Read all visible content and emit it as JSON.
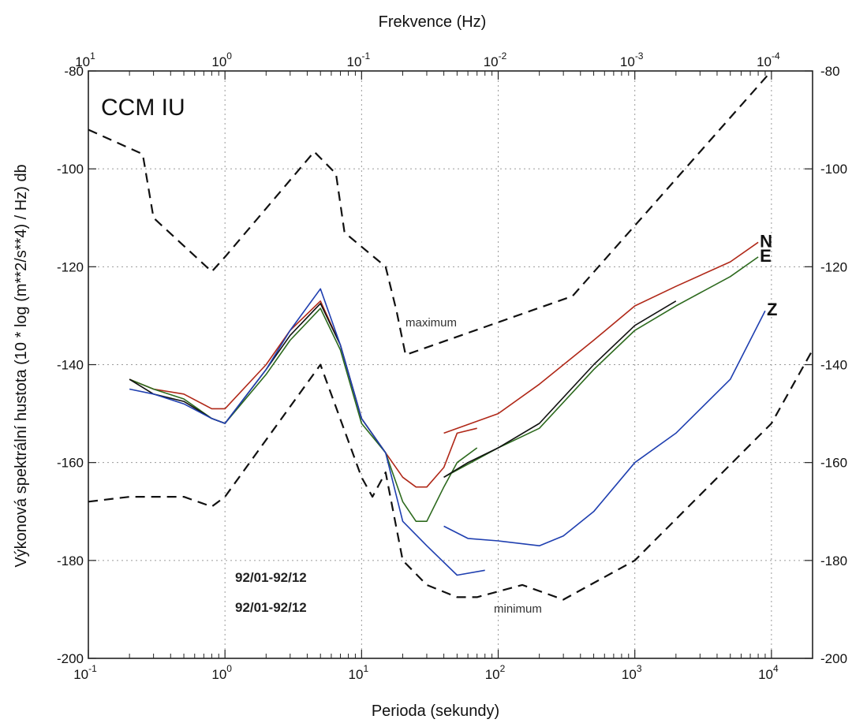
{
  "chart_data": {
    "type": "line",
    "x_scale": "log",
    "xlabel": "Perioda (sekundy)",
    "x2label": "Frekvence (Hz)",
    "ylabel": "Výkonová spektrální hustota  (10 * log (m**2/s**4) / Hz) db",
    "xlim": [
      0.1,
      20000
    ],
    "ylim": [
      -200,
      -80
    ],
    "grid": true,
    "x_ticks": [
      {
        "value": 0.1,
        "base": "10",
        "exp": "-1"
      },
      {
        "value": 1,
        "base": "10",
        "exp": "0"
      },
      {
        "value": 10,
        "base": "10",
        "exp": "1"
      },
      {
        "value": 100,
        "base": "10",
        "exp": "2"
      },
      {
        "value": 1000,
        "base": "10",
        "exp": "3"
      },
      {
        "value": 10000,
        "base": "10",
        "exp": "4"
      }
    ],
    "x2_ticks": [
      {
        "period": 0.1,
        "base": "10",
        "exp": "1"
      },
      {
        "period": 1,
        "base": "10",
        "exp": "0"
      },
      {
        "period": 10,
        "base": "10",
        "exp": "-1"
      },
      {
        "period": 100,
        "base": "10",
        "exp": "-2"
      },
      {
        "period": 1000,
        "base": "10",
        "exp": "-3"
      },
      {
        "period": 10000,
        "base": "10",
        "exp": "-4"
      }
    ],
    "y_ticks": [
      -80,
      -100,
      -120,
      -140,
      -160,
      -180,
      -200
    ],
    "y_ticks_right": [
      -80,
      -100,
      -120,
      -140,
      -160,
      -180,
      -200
    ],
    "annotations": {
      "station": "CCM  IU",
      "date1": "92/01-92/12",
      "date2": "92/01-92/12",
      "maximum": "maximum",
      "minimum": "minimum"
    },
    "series": [
      {
        "name": "maximum",
        "color": "#111111",
        "dashed": true,
        "x": [
          0.1,
          0.25,
          0.3,
          0.8,
          1.0,
          4.5,
          6.5,
          7.5,
          15,
          18,
          21,
          350,
          10000
        ],
        "y": [
          -92,
          -97,
          -110,
          -121,
          -118,
          -96.5,
          -101,
          -113,
          -120,
          -129,
          -138,
          -126,
          -80
        ]
      },
      {
        "name": "minimum",
        "color": "#111111",
        "dashed": true,
        "x": [
          0.1,
          0.2,
          0.5,
          0.8,
          1.0,
          5,
          10,
          12,
          15,
          20,
          30,
          50,
          70,
          150,
          300,
          1000,
          10000,
          20000
        ],
        "y": [
          -168,
          -167,
          -167,
          -169,
          -167,
          -140,
          -163,
          -167,
          -162,
          -180,
          -185,
          -187.5,
          -187.5,
          -185,
          -188,
          -180,
          -152,
          -137
        ]
      },
      {
        "name": "N",
        "label": "N",
        "color": "#b02818",
        "x": [
          0.2,
          0.3,
          0.5,
          0.8,
          1.0,
          2,
          3,
          5,
          7,
          10,
          15,
          20,
          25,
          30,
          40,
          50,
          70
        ],
        "y": [
          -143,
          -145,
          -146,
          -149,
          -149,
          -140,
          -133,
          -127,
          -136,
          -151,
          -158,
          -163,
          -165,
          -165,
          -161,
          -154,
          -153
        ],
        "x2": [
          40,
          100,
          200,
          500,
          1000,
          2000,
          5000,
          8000
        ],
        "y2": [
          -154,
          -150,
          -144,
          -135,
          -128,
          -124,
          -119,
          -115
        ]
      },
      {
        "name": "E",
        "label": "E",
        "color": "#2d6a1e",
        "x": [
          0.2,
          0.3,
          0.5,
          0.8,
          1.0,
          2,
          3,
          5,
          7,
          10,
          15,
          20,
          25,
          30,
          40,
          50,
          70
        ],
        "y": [
          -143,
          -145,
          -147,
          -151,
          -152,
          -142,
          -135,
          -128.5,
          -137,
          -152,
          -158,
          -168,
          -172,
          -172,
          -165,
          -160,
          -157
        ],
        "x2": [
          40,
          100,
          200,
          500,
          1000,
          2000,
          5000,
          8000
        ],
        "y2": [
          -163,
          -157,
          -153,
          -141,
          -133,
          -128,
          -122,
          -118
        ]
      },
      {
        "name": "black",
        "color": "#111111",
        "x": [
          0.2,
          0.3,
          0.5,
          0.8,
          1.0,
          2,
          3,
          5,
          7,
          10,
          15
        ],
        "y": [
          -143,
          -146,
          -147.5,
          -151,
          -152,
          -141,
          -134,
          -127.5,
          -136,
          -151,
          -158
        ],
        "x2": [
          40,
          60,
          100,
          200,
          500,
          1000,
          2000
        ],
        "y2": [
          -163,
          -160,
          -157,
          -152,
          -140,
          -132,
          -127
        ]
      },
      {
        "name": "Z",
        "label": "Z",
        "color": "#1f3fb0",
        "x": [
          0.2,
          0.3,
          0.5,
          0.8,
          1.0,
          2,
          3,
          5,
          7,
          10,
          15,
          20,
          30,
          50,
          80
        ],
        "y": [
          -145,
          -146,
          -148,
          -151,
          -152,
          -141,
          -133,
          -124.5,
          -136,
          -151,
          -158,
          -172,
          -177,
          -183,
          -182
        ],
        "x2": [
          40,
          60,
          100,
          200,
          300,
          500,
          1000,
          2000,
          5000,
          9000
        ],
        "y2": [
          -173,
          -175.5,
          -176,
          -177,
          -175,
          -170,
          -160,
          -154,
          -143,
          -129
        ]
      }
    ]
  }
}
